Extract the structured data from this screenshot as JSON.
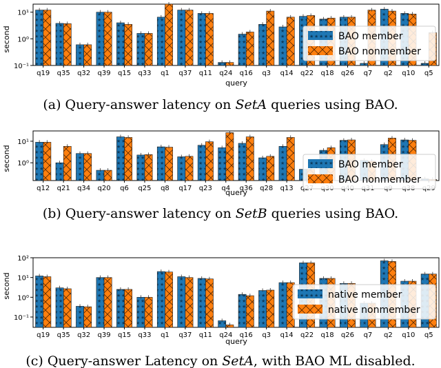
{
  "panels": [
    {
      "caption": {
        "prefix": "(a) Query-answer latency on ",
        "math": "SetA",
        "suffix": " queries using BAO."
      },
      "chart_data": {
        "type": "bar",
        "xlabel": "query",
        "ylabel": "second",
        "yscale": "log",
        "ylim": [
          0.1,
          20
        ],
        "yticks": [
          {
            "value": 0.1,
            "label": "10⁻¹"
          },
          {
            "value": 1,
            "label": "10⁰"
          },
          {
            "value": 10,
            "label": "10¹"
          }
        ],
        "legend_position": "center-right",
        "categories": [
          "q19",
          "q35",
          "q32",
          "q39",
          "q15",
          "q33",
          "q1",
          "q37",
          "q11",
          "q24",
          "q16",
          "q3",
          "q14",
          "q22",
          "q18",
          "q26",
          "q7",
          "q2",
          "q10",
          "q5"
        ],
        "series": [
          {
            "name": "BAO member",
            "color": "#1f77b4",
            "hatch": "star",
            "values": [
              12,
              3.8,
              0.6,
              10,
              4,
              1.6,
              6.5,
              12,
              9,
              0.13,
              1.5,
              3.5,
              2.8,
              7,
              5.5,
              6.5,
              0.12,
              13,
              9,
              0.12
            ]
          },
          {
            "name": "BAO nonmember",
            "color": "#ff7f0e",
            "hatch": "cross",
            "values": [
              12,
              3.7,
              0.6,
              10,
              3.5,
              1.6,
              20,
              12,
              9,
              0.13,
              1.8,
              11,
              6.5,
              7.5,
              6,
              6.5,
              12,
              11,
              8.5,
              1.7
            ]
          }
        ]
      }
    },
    {
      "caption": {
        "prefix": "(b) Query-answer latency on ",
        "math": "SetB",
        "suffix": " queries using BAO."
      },
      "chart_data": {
        "type": "bar",
        "xlabel": "query",
        "ylabel": "second",
        "yscale": "log",
        "ylim": [
          0.15,
          30
        ],
        "yticks": [
          {
            "value": 1,
            "label": "10⁰"
          },
          {
            "value": 10,
            "label": "10¹"
          }
        ],
        "legend_position": "center-right",
        "categories": [
          "q12",
          "q21",
          "q34",
          "q20",
          "q6",
          "q25",
          "q8",
          "q17",
          "q23",
          "q4",
          "q36",
          "q28",
          "q13",
          "q27",
          "q30",
          "q40",
          "q31",
          "q9",
          "q38",
          "q29"
        ],
        "series": [
          {
            "name": "BAO member",
            "color": "#1f77b4",
            "hatch": "star",
            "values": [
              9,
              1,
              2.7,
              0.45,
              16,
              2.3,
              5.5,
              1.9,
              6.5,
              5,
              8,
              1.7,
              5.8,
              0.5,
              3.8,
              11,
              1.3,
              7,
              11.5,
              0.18
            ]
          },
          {
            "name": "BAO nonmember",
            "color": "#ff7f0e",
            "hatch": "cross",
            "values": [
              9,
              5.8,
              2.7,
              0.45,
              15,
              2.4,
              5.3,
              2,
              9.5,
              25,
              16,
              2,
              15,
              0.5,
              5,
              11.5,
              1.2,
              14,
              11,
              0.17
            ]
          }
        ]
      }
    },
    {
      "caption": {
        "prefix": "(c) Query-answer Latency on ",
        "math": "SetA",
        "suffix": ", with BAO ML disabled."
      },
      "chart_data": {
        "type": "bar",
        "xlabel": "query",
        "ylabel": "second",
        "yscale": "log",
        "ylim": [
          0.03,
          100
        ],
        "yticks": [
          {
            "value": 0.1,
            "label": "10⁻¹"
          },
          {
            "value": 1,
            "label": "10⁰"
          },
          {
            "value": 10,
            "label": "10¹"
          },
          {
            "value": 100,
            "label": "10²"
          }
        ],
        "legend_position": "lower-right",
        "categories": [
          "q19",
          "q35",
          "q32",
          "q39",
          "q15",
          "q33",
          "q1",
          "q37",
          "q11",
          "q24",
          "q16",
          "q3",
          "q14",
          "q22",
          "q18",
          "q26",
          "q7",
          "q2",
          "q10",
          "q5"
        ],
        "series": [
          {
            "name": "native member",
            "color": "#1f77b4",
            "hatch": "star",
            "values": [
              12,
              3,
              0.35,
              10,
              2.5,
              1,
              20,
              11,
              9,
              0.065,
              1.4,
              2.2,
              5.5,
              55,
              9,
              5,
              0.5,
              70,
              6.5,
              15
            ]
          },
          {
            "name": "native nonmember",
            "color": "#ff7f0e",
            "hatch": "cross",
            "values": [
              11,
              2.7,
              0.33,
              10,
              2.5,
              1,
              19,
              10,
              8.5,
              0.04,
              1.2,
              2.3,
              5.5,
              55,
              9,
              5,
              0.5,
              65,
              6.5,
              15
            ]
          }
        ]
      }
    }
  ]
}
